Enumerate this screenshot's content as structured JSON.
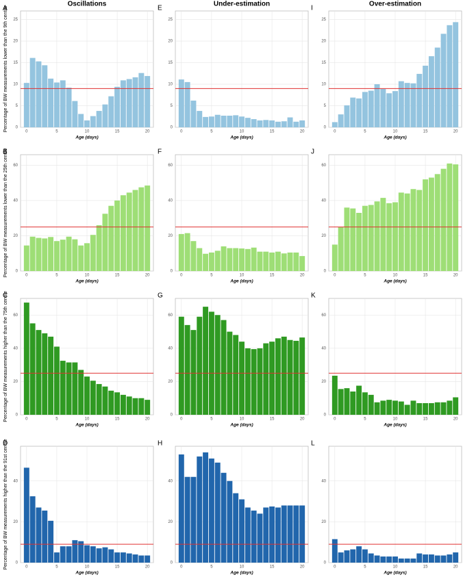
{
  "chart_data": [
    {
      "type": "bar",
      "panel": "A",
      "title": "Oscillations",
      "ylabel": "Percentage of BW measurements lower than the 9th centile",
      "xlabel": "Age (days)",
      "x": [
        0,
        1,
        2,
        3,
        4,
        5,
        6,
        7,
        8,
        9,
        10,
        11,
        12,
        13,
        14,
        15,
        16,
        17,
        18,
        19,
        20
      ],
      "values": [
        10.3,
        16.1,
        15.3,
        14.4,
        11.3,
        10.4,
        10.9,
        9.2,
        6.1,
        3.1,
        1.6,
        2.6,
        3.8,
        5.3,
        7.2,
        9.4,
        10.9,
        11.2,
        11.6,
        12.6,
        11.9
      ],
      "color": "#94c4df",
      "xlim": [
        -1,
        21
      ],
      "ylim": [
        0,
        27
      ],
      "xticks": [
        0,
        5,
        10,
        15,
        20
      ],
      "yticks": [
        0,
        5,
        10,
        15,
        20,
        25
      ],
      "reference_line": {
        "value": 9,
        "color": "#e03030"
      },
      "grid": true
    },
    {
      "type": "bar",
      "panel": "E",
      "title": "Under-estimation",
      "xlabel": "Age (days)",
      "x": [
        0,
        1,
        2,
        3,
        4,
        5,
        6,
        7,
        8,
        9,
        10,
        11,
        12,
        13,
        14,
        15,
        16,
        17,
        18,
        19,
        20
      ],
      "values": [
        11.1,
        10.5,
        6.2,
        3.8,
        2.4,
        2.5,
        2.9,
        2.7,
        2.7,
        2.8,
        2.5,
        2.2,
        1.9,
        1.6,
        1.7,
        1.6,
        1.3,
        1.4,
        2.3,
        1.3,
        1.6
      ],
      "color": "#94c4df",
      "xlim": [
        -1,
        21
      ],
      "ylim": [
        0,
        27
      ],
      "xticks": [
        0,
        5,
        10,
        15,
        20
      ],
      "yticks": [
        0,
        5,
        10,
        15,
        20,
        25
      ],
      "reference_line": {
        "value": 9,
        "color": "#e03030"
      },
      "grid": true
    },
    {
      "type": "bar",
      "panel": "I",
      "title": "Over-estimation",
      "xlabel": "Age (days)",
      "x": [
        0,
        1,
        2,
        3,
        4,
        5,
        6,
        7,
        8,
        9,
        10,
        11,
        12,
        13,
        14,
        15,
        16,
        17,
        18,
        19,
        20
      ],
      "values": [
        1.2,
        3.0,
        5.1,
        6.9,
        6.7,
        8.2,
        8.5,
        10.0,
        8.9,
        7.9,
        8.4,
        10.7,
        10.3,
        10.2,
        12.4,
        14.3,
        16.5,
        18.5,
        21.7,
        23.7,
        24.4
      ],
      "color": "#94c4df",
      "xlim": [
        -1,
        21
      ],
      "ylim": [
        0,
        27
      ],
      "xticks": [
        0,
        5,
        10,
        15,
        20
      ],
      "yticks": [
        0,
        5,
        10,
        15,
        20,
        25
      ],
      "reference_line": {
        "value": 9,
        "color": "#e03030"
      },
      "grid": true
    },
    {
      "type": "bar",
      "panel": "B",
      "ylabel": "Percentage of BW measurements lower than the 25th centile",
      "xlabel": "Age (days)",
      "x": [
        0,
        1,
        2,
        3,
        4,
        5,
        6,
        7,
        8,
        9,
        10,
        11,
        12,
        13,
        14,
        15,
        16,
        17,
        18,
        19,
        20
      ],
      "values": [
        14.5,
        19.5,
        18.8,
        18.5,
        19.3,
        17,
        17.8,
        19.5,
        18,
        14.5,
        15.8,
        20.5,
        26,
        32.5,
        37,
        40,
        43,
        44.5,
        46,
        47.5,
        48.5
      ],
      "color": "#9ede76",
      "xlim": [
        -1,
        21
      ],
      "ylim": [
        0,
        66
      ],
      "xticks": [
        0,
        5,
        10,
        15,
        20
      ],
      "yticks": [
        0,
        20,
        40,
        60
      ],
      "reference_line": {
        "value": 25,
        "color": "#e03030"
      },
      "grid": true
    },
    {
      "type": "bar",
      "panel": "F",
      "xlabel": "Age (days)",
      "x": [
        0,
        1,
        2,
        3,
        4,
        5,
        6,
        7,
        8,
        9,
        10,
        11,
        12,
        13,
        14,
        15,
        16,
        17,
        18,
        19,
        20
      ],
      "values": [
        21,
        21.5,
        17,
        13,
        9.8,
        10.5,
        11.5,
        14,
        13,
        13,
        12.8,
        12.5,
        13.3,
        11,
        11,
        10.5,
        11,
        10,
        10.5,
        10.5,
        8.5
      ],
      "color": "#9ede76",
      "xlim": [
        -1,
        21
      ],
      "ylim": [
        0,
        66
      ],
      "xticks": [
        0,
        5,
        10,
        15,
        20
      ],
      "yticks": [
        0,
        20,
        40,
        60
      ],
      "reference_line": {
        "value": 25,
        "color": "#e03030"
      },
      "grid": true
    },
    {
      "type": "bar",
      "panel": "J",
      "xlabel": "Age (days)",
      "x": [
        0,
        1,
        2,
        3,
        4,
        5,
        6,
        7,
        8,
        9,
        10,
        11,
        12,
        13,
        14,
        15,
        16,
        17,
        18,
        19,
        20
      ],
      "values": [
        15,
        25,
        36,
        35.5,
        33,
        37,
        37.5,
        39.5,
        41.5,
        38.5,
        39,
        44.5,
        44,
        46.5,
        46,
        52,
        53,
        55,
        58,
        61,
        60.5
      ],
      "color": "#9ede76",
      "xlim": [
        -1,
        21
      ],
      "ylim": [
        0,
        66
      ],
      "xticks": [
        0,
        5,
        10,
        15,
        20
      ],
      "yticks": [
        0,
        20,
        40,
        60
      ],
      "reference_line": {
        "value": 25,
        "color": "#e03030"
      },
      "grid": true
    },
    {
      "type": "bar",
      "panel": "C",
      "ylabel": "Percentage of BW measurements higher than the 75th centile",
      "xlabel": "Age (days)",
      "x": [
        0,
        1,
        2,
        3,
        4,
        5,
        6,
        7,
        8,
        9,
        10,
        11,
        12,
        13,
        14,
        15,
        16,
        17,
        18,
        19,
        20
      ],
      "values": [
        67.5,
        55,
        51,
        49,
        47,
        41,
        32.5,
        31.5,
        31.5,
        27,
        23,
        20.5,
        18.5,
        17,
        14.5,
        13.5,
        12,
        11,
        10,
        10,
        9
      ],
      "color": "#2f9a22",
      "xlim": [
        -1,
        21
      ],
      "ylim": [
        0,
        70
      ],
      "xticks": [
        0,
        5,
        10,
        15,
        20
      ],
      "yticks": [
        0,
        20,
        40,
        60
      ],
      "reference_line": {
        "value": 25,
        "color": "#e03030"
      },
      "grid": true
    },
    {
      "type": "bar",
      "panel": "G",
      "xlabel": "Age (days)",
      "x": [
        0,
        1,
        2,
        3,
        4,
        5,
        6,
        7,
        8,
        9,
        10,
        11,
        12,
        13,
        14,
        15,
        16,
        17,
        18,
        19,
        20
      ],
      "values": [
        59,
        54,
        51,
        59,
        65,
        62,
        60,
        57,
        50,
        48,
        44,
        40,
        39.5,
        40,
        43,
        44,
        46,
        47,
        45,
        44.5,
        46.5
      ],
      "color": "#2f9a22",
      "xlim": [
        -1,
        21
      ],
      "ylim": [
        0,
        70
      ],
      "xticks": [
        0,
        5,
        10,
        15,
        20
      ],
      "yticks": [
        0,
        20,
        40,
        60
      ],
      "reference_line": {
        "value": 25,
        "color": "#e03030"
      },
      "grid": true
    },
    {
      "type": "bar",
      "panel": "K",
      "xlabel": "Age (days)",
      "x": [
        0,
        1,
        2,
        3,
        4,
        5,
        6,
        7,
        8,
        9,
        10,
        11,
        12,
        13,
        14,
        15,
        16,
        17,
        18,
        19,
        20
      ],
      "values": [
        23.5,
        15.5,
        16,
        14,
        17.5,
        13.5,
        12,
        7.5,
        8.5,
        9,
        8.5,
        8,
        6,
        8.5,
        7,
        7,
        7,
        7.5,
        7.5,
        8.5,
        10.5
      ],
      "color": "#2f9a22",
      "xlim": [
        -1,
        21
      ],
      "ylim": [
        0,
        70
      ],
      "xticks": [
        0,
        5,
        10,
        15,
        20
      ],
      "yticks": [
        0,
        20,
        40,
        60
      ],
      "reference_line": {
        "value": 25,
        "color": "#e03030"
      },
      "grid": true
    },
    {
      "type": "bar",
      "panel": "D",
      "ylabel": "Percentage of BW measurements higher than the 91st centile",
      "xlabel": "Age (days)",
      "x": [
        0,
        1,
        2,
        3,
        4,
        5,
        6,
        7,
        8,
        9,
        10,
        11,
        12,
        13,
        14,
        15,
        16,
        17,
        18,
        19,
        20
      ],
      "values": [
        46.5,
        32.5,
        27,
        25.5,
        20.5,
        5,
        8,
        8,
        11,
        10.5,
        8.5,
        8,
        7,
        7.5,
        6.5,
        5,
        5,
        4.5,
        4,
        3.5,
        3.5
      ],
      "color": "#2166ac",
      "xlim": [
        -1,
        21
      ],
      "ylim": [
        0,
        57
      ],
      "xticks": [
        0,
        5,
        10,
        15,
        20
      ],
      "yticks": [
        0,
        20,
        40
      ],
      "reference_line": {
        "value": 9,
        "color": "#e03030"
      },
      "grid": true
    },
    {
      "type": "bar",
      "panel": "H",
      "xlabel": "Age (days)",
      "x": [
        0,
        1,
        2,
        3,
        4,
        5,
        6,
        7,
        8,
        9,
        10,
        11,
        12,
        13,
        14,
        15,
        16,
        17,
        18,
        19,
        20
      ],
      "values": [
        53,
        42,
        42,
        52,
        54,
        51,
        49,
        44,
        40,
        34,
        31,
        27,
        25.5,
        24,
        27,
        27.5,
        27,
        28,
        28,
        28,
        28
      ],
      "color": "#2166ac",
      "xlim": [
        -1,
        21
      ],
      "ylim": [
        0,
        57
      ],
      "xticks": [
        0,
        5,
        10,
        15,
        20
      ],
      "yticks": [
        0,
        20,
        40
      ],
      "reference_line": {
        "value": 9,
        "color": "#e03030"
      },
      "grid": true
    },
    {
      "type": "bar",
      "panel": "L",
      "xlabel": "Age (days)",
      "x": [
        0,
        1,
        2,
        3,
        4,
        5,
        6,
        7,
        8,
        9,
        10,
        11,
        12,
        13,
        14,
        15,
        16,
        17,
        18,
        19,
        20
      ],
      "values": [
        11.5,
        5,
        6,
        6.5,
        8,
        6.5,
        4.5,
        3.5,
        3,
        3,
        3,
        2,
        2,
        2,
        4.5,
        4,
        4,
        3.5,
        3.5,
        4,
        5
      ],
      "color": "#2166ac",
      "xlim": [
        -1,
        21
      ],
      "ylim": [
        0,
        57
      ],
      "xticks": [
        0,
        5,
        10,
        15,
        20
      ],
      "yticks": [
        0,
        20,
        40
      ],
      "reference_line": {
        "value": 9,
        "color": "#e03030"
      },
      "grid": true
    }
  ]
}
